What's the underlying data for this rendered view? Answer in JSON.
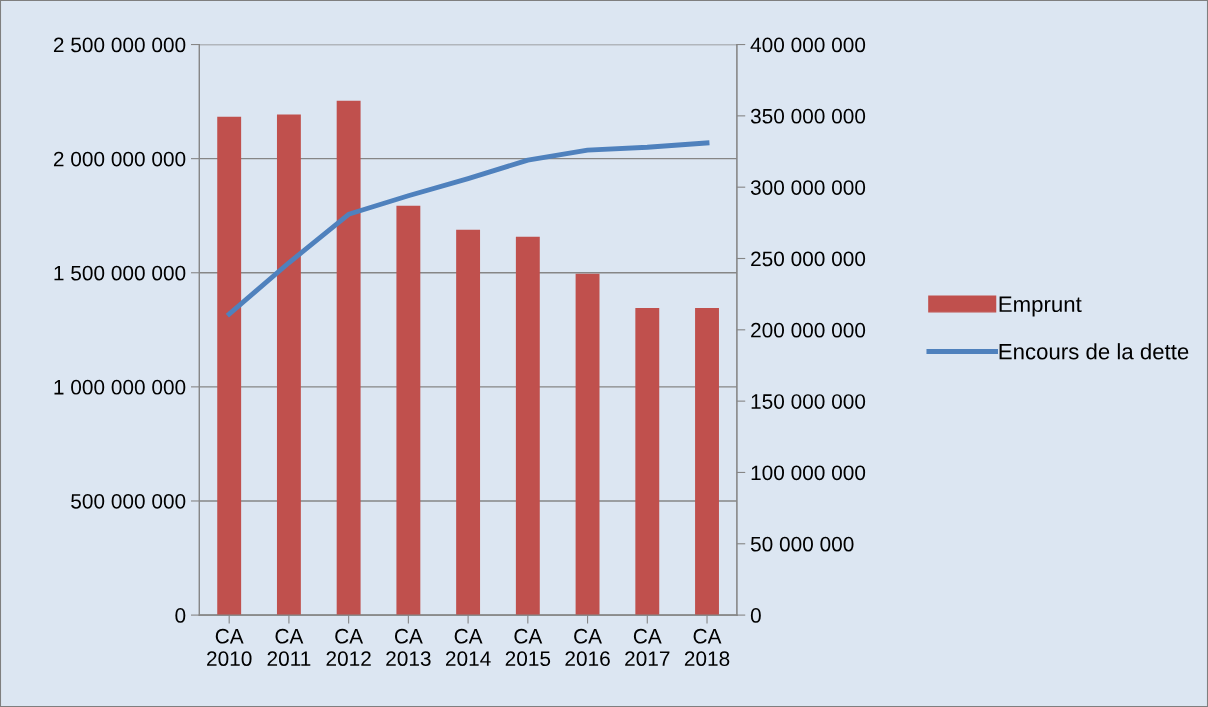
{
  "chart_data": {
    "type": "bar",
    "categories": [
      "CA\n2010",
      "CA\n2011",
      "CA\n2012",
      "CA\n2013",
      "CA\n2014",
      "CA\n2015",
      "CA\n2016",
      "CA\n2017",
      "CA\n2018"
    ],
    "series": [
      {
        "name": "Emprunt",
        "color": "#c0504d",
        "values": [
          2184000000,
          2193000000,
          2254000000,
          1794000000,
          1689000000,
          1658000000,
          1496000000,
          1346000000,
          1346000000
        ]
      },
      {
        "name": "Encours de la dette",
        "color": "#4f81bd",
        "type": "line",
        "axis": "y2",
        "values": [
          211000000,
          247000000,
          281000000,
          294000000,
          306000000,
          319000000,
          326000000,
          328000000,
          331000000
        ]
      }
    ],
    "ylim": [
      0,
      2500000000
    ],
    "yticks": [
      0,
      {
        "value": 500000000,
        "label": "500 000 000"
      },
      {
        "value": 1000000000,
        "label": "1 000 000 000"
      },
      {
        "value": 1500000000,
        "label": "1 500 000 000"
      },
      {
        "value": 2000000000,
        "label": "2 000 000 000"
      },
      {
        "value": 2500000000,
        "label": "2 500 000 000"
      }
    ],
    "y2lim": [
      0,
      400000000
    ],
    "y2ticks": [
      0,
      {
        "value": 50000000,
        "label": "50 000 000"
      },
      {
        "value": 100000000,
        "label": "100 000 000"
      },
      {
        "value": 150000000,
        "label": "150 000 000"
      },
      {
        "value": 200000000,
        "label": "200 000 000"
      },
      {
        "value": 250000000,
        "label": "250 000 000"
      },
      {
        "value": 300000000,
        "label": "300 000 000"
      },
      {
        "value": 350000000,
        "label": "350 000 000"
      },
      {
        "value": 400000000,
        "label": "400 000 000"
      }
    ],
    "grid": "y",
    "legend": "right",
    "marker": "none",
    "line_style": "solid"
  }
}
